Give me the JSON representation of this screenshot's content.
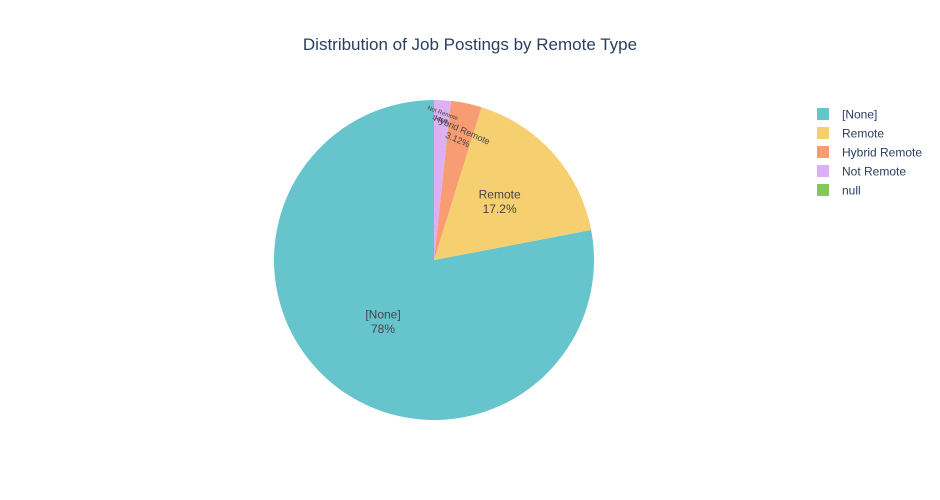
{
  "chart_data": {
    "type": "pie",
    "title": "Distribution of Job Postings by Remote Type",
    "slices": [
      {
        "label": "[None]",
        "value": 78.0,
        "percent_text": "78%",
        "color": "#66c5cc"
      },
      {
        "label": "Remote",
        "value": 17.2,
        "percent_text": "17.2%",
        "color": "#f6cf71"
      },
      {
        "label": "Hybrid Remote",
        "value": 3.12,
        "percent_text": "3.12%",
        "color": "#f89c74"
      },
      {
        "label": "Not Remote",
        "value": 1.68,
        "percent_text": "1.68%",
        "color": "#dcb0f2"
      },
      {
        "label": "null",
        "value": 0.0,
        "percent_text": "",
        "color": "#87c55f"
      }
    ],
    "legend": {
      "placement": "top-right",
      "entries": [
        "[None]",
        "Remote",
        "Hybrid Remote",
        "Not Remote",
        "null"
      ]
    },
    "direction": "clockwise",
    "start_angle": "top"
  }
}
